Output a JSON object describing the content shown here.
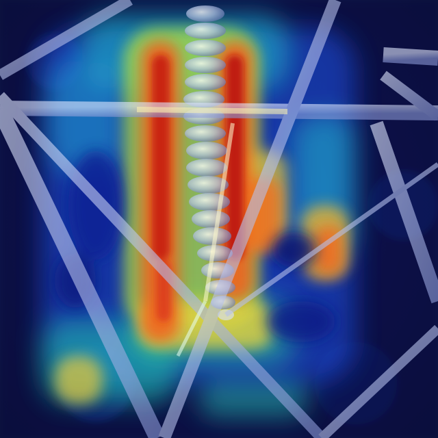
{
  "image": {
    "kind": "class-activation-heatmap-overlay",
    "subject": "insulator-string-on-transmission-tower",
    "colormap": "jet",
    "colors": {
      "background": "#0a0f3a",
      "low": "#0d1a8c",
      "mid_low": "#1e7bff",
      "mid": "#22e0c0",
      "mid_high": "#f4e23c",
      "high": "#e0281a",
      "peak": "#9b0a0a",
      "steel": "#c9d2f0",
      "insulator": "#b8c4d8"
    },
    "icons": {
      "tower": "lattice-tower-icon",
      "insulator": "insulator-icon"
    }
  }
}
